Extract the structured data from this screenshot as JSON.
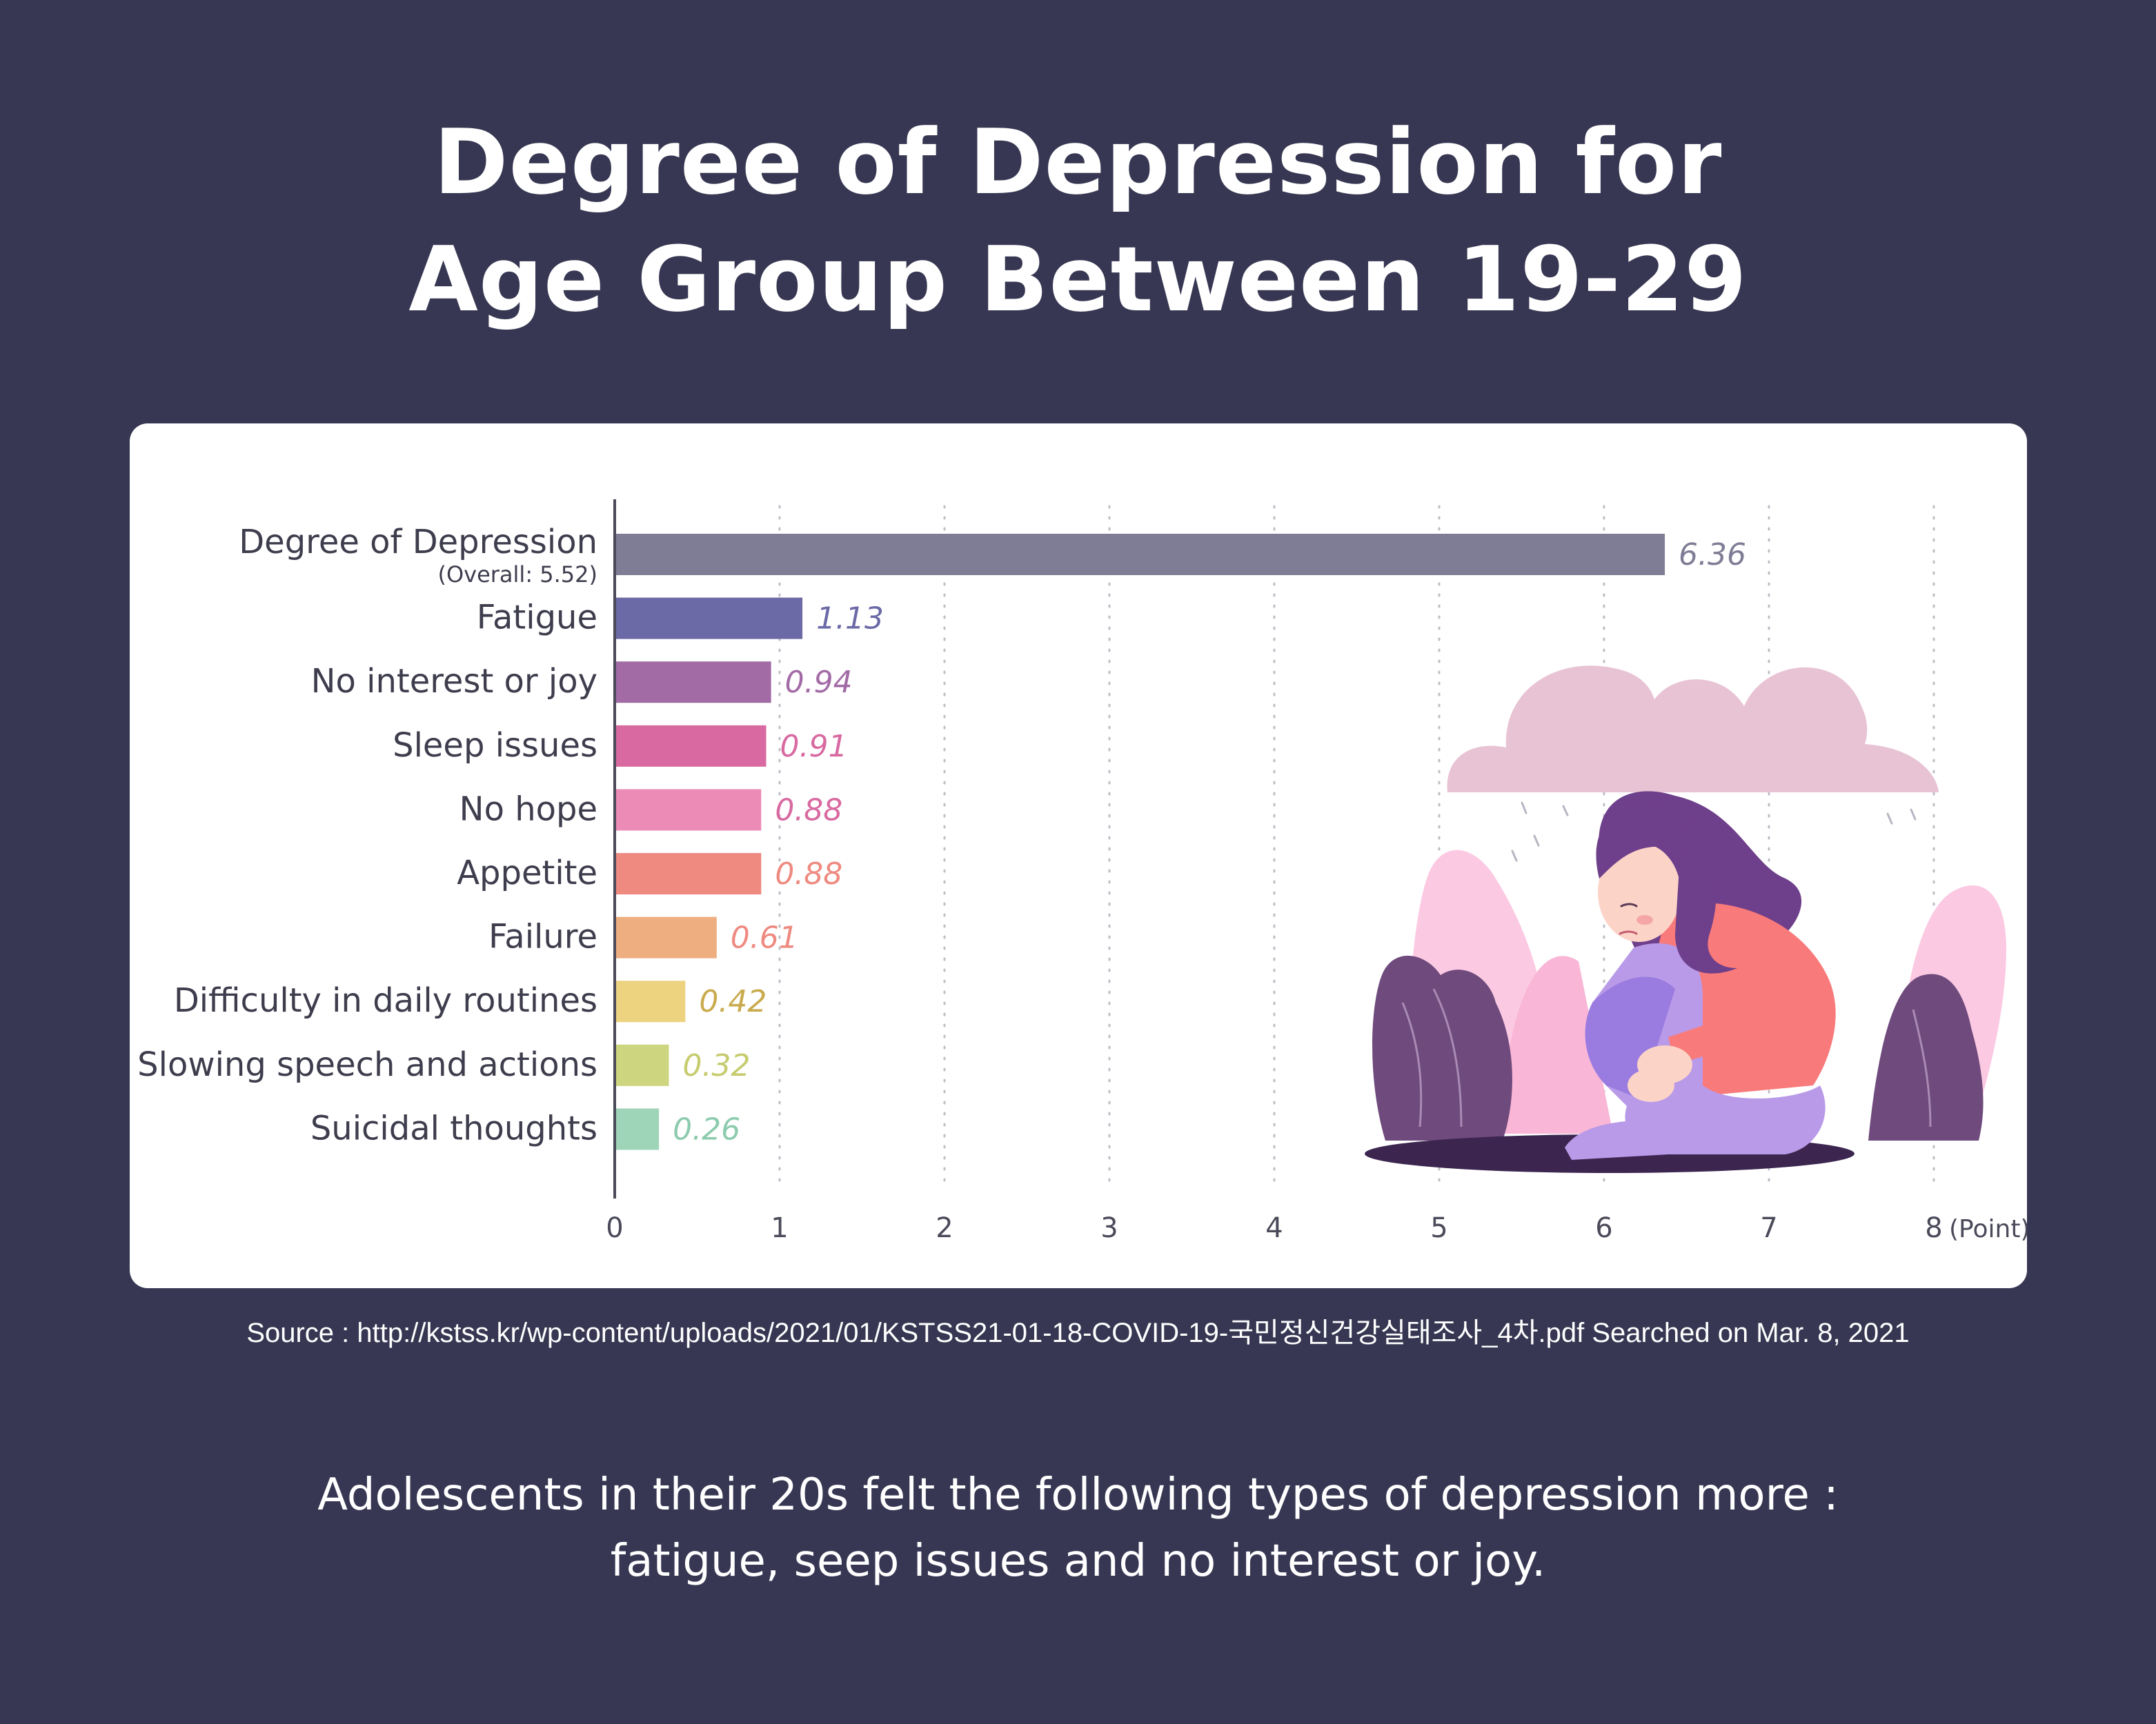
{
  "title": {
    "line1": "Degree of Depression for",
    "line2": "Age Group Between 19-29"
  },
  "chart_data": {
    "type": "bar",
    "orientation": "horizontal",
    "categories": [
      "Degree of Depression",
      "Fatigue",
      "No interest or joy",
      "Sleep issues",
      "No hope",
      "Appetite",
      "Failure",
      "Difficulty in daily routines",
      "Slowing speech and actions",
      "Suicidal thoughts"
    ],
    "category_sublabels": [
      "(Overall: 5.52)",
      "",
      "",
      "",
      "",
      "",
      "",
      "",
      "",
      ""
    ],
    "values": [
      6.36,
      1.13,
      0.94,
      0.91,
      0.88,
      0.88,
      0.61,
      0.42,
      0.32,
      0.26
    ],
    "value_labels": [
      "6.36",
      "1.13",
      "0.94",
      "0.91",
      "0.88",
      "0.88",
      "0.61",
      "0.42",
      "0.32",
      "0.26"
    ],
    "colors": [
      "#7e7d95",
      "#6c6aa6",
      "#a36ba6",
      "#d86aa1",
      "#ec8bb6",
      "#ee8a80",
      "#eeae80",
      "#edd380",
      "#cdd67e",
      "#9ed4b8"
    ],
    "label_colors": [
      "#7e7d95",
      "#6c6aa6",
      "#a36ba6",
      "#d86aa1",
      "#d86aa1",
      "#ee8a80",
      "#ee8a80",
      "#c9ab4e",
      "#c6cc6e",
      "#8ccbad"
    ],
    "xlim": [
      0,
      8
    ],
    "xticks": [
      "0",
      "1",
      "2",
      "3",
      "4",
      "5",
      "6",
      "7",
      "8"
    ],
    "xunit": "(Point)",
    "grid": "vertical dotted"
  },
  "source": "Source : http://kstss.kr/wp-content/uploads/2021/01/KSTSS21-01-18-COVID-19-국민정신건강실태조사_4차.pdf Searched on Mar. 8, 2021",
  "subtitle": {
    "line1": "Adolescents in their 20s felt the following types of depression more :",
    "line2": "fatigue, seep issues and no interest or joy."
  },
  "illustration": {
    "icon": "sad-woman-under-rain-cloud-icon",
    "colors": {
      "cloud": "#e8c3d4",
      "hair": "#6e3f8a",
      "skin": "#fbd3c7",
      "shirt": "#f97a7a",
      "pants": "#b99ae8",
      "plant_pink": "#fcc9e2",
      "plant_purple": "#6f4a7d",
      "shadow": "#3c2650"
    }
  }
}
